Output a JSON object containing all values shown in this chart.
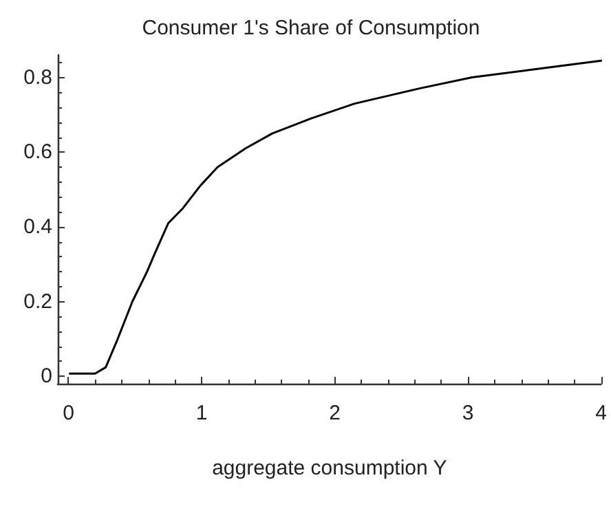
{
  "chart_data": {
    "type": "line",
    "title": "Consumer 1's Share of Consumption",
    "xlabel": "aggregate consumption Y",
    "x": [
      0.01,
      0.2,
      0.28,
      0.37,
      0.48,
      0.59,
      0.65,
      0.75,
      0.86,
      0.99,
      1.12,
      1.33,
      1.53,
      1.82,
      2.15,
      2.63,
      3.03,
      3.46,
      4.0
    ],
    "series": [
      {
        "color": "#000000",
        "values": [
          0.007,
          0.007,
          0.024,
          0.1,
          0.2,
          0.28,
          0.33,
          0.41,
          0.45,
          0.51,
          0.56,
          0.61,
          0.65,
          0.69,
          0.73,
          0.77,
          0.8,
          0.82,
          0.845
        ]
      }
    ],
    "xlim": [
      -0.08,
      4.0
    ],
    "ylim": [
      -0.02,
      0.86
    ],
    "xticks": [
      0,
      1,
      2,
      3,
      4
    ],
    "yticks": [
      0,
      0.2,
      0.4,
      0.6,
      0.8
    ],
    "grid": false,
    "marker": "none",
    "line_style": "solid"
  }
}
